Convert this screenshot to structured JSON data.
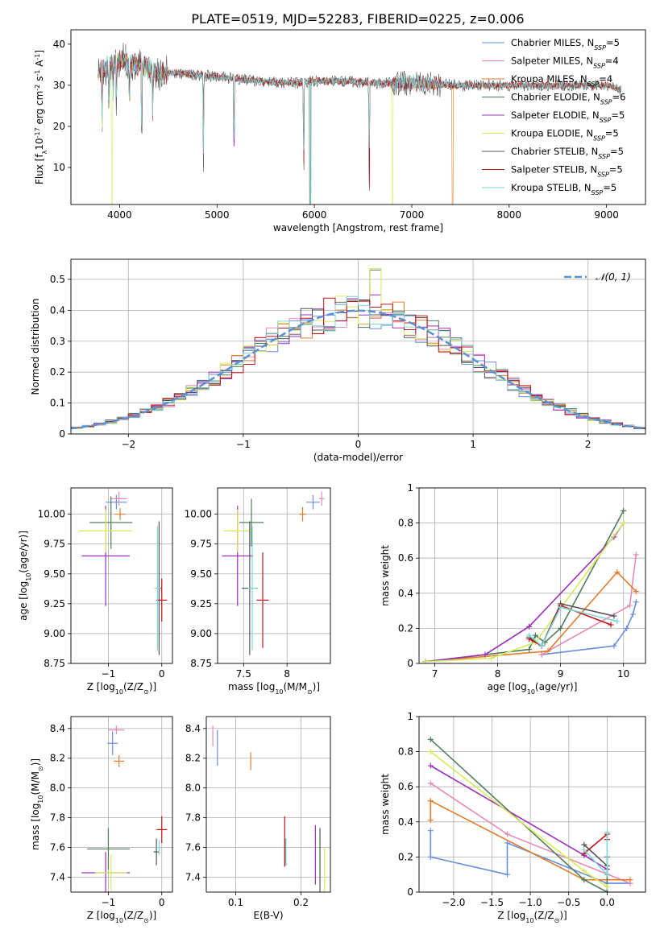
{
  "figure": {
    "title": "PLATE=0519, MJD=52283, FIBERID=0225, z=0.006"
  },
  "colors": {
    "chabrier_miles": "#6a8ee0",
    "salpeter_miles": "#e58ab8",
    "kroupa_miles": "#e07d2c",
    "chabrier_elodie": "#4f7f5a",
    "salpeter_elodie": "#9b30b8",
    "kroupa_elodie": "#d6ea5a",
    "chabrier_stelib": "#555555",
    "salpeter_stelib": "#c0141a",
    "kroupa_stelib": "#7fd6d8",
    "gaussian": "#5b8fd6"
  },
  "chart_data": [
    {
      "id": "spectrum",
      "type": "line",
      "xlabel": "wavelength [Angstrom, rest frame]",
      "ylabel": "Flux [f$_\\lambda$10$^{-17}$ erg cm$^{-2}$ s$^{-1}$ A$^{-1}$]",
      "xlim": [
        3500,
        9400
      ],
      "ylim": [
        1,
        43.5
      ],
      "xticks": [
        4000,
        5000,
        6000,
        7000,
        8000,
        9000
      ],
      "yticks": [
        10,
        20,
        30,
        40
      ],
      "grid": false,
      "legend_position": "top-right",
      "legend": [
        {
          "label": "Chabrier MILES, N",
          "sub": "SSP",
          "value": "=5",
          "color_key": "chabrier_miles"
        },
        {
          "label": "Salpeter MILES, N",
          "sub": "SSP",
          "value": "=4",
          "color_key": "salpeter_miles"
        },
        {
          "label": "Kroupa MILES, N",
          "sub": "SSP",
          "value": "=4",
          "color_key": "kroupa_miles"
        },
        {
          "label": "Chabrier ELODIE, N",
          "sub": "SSP",
          "value": "=6",
          "color_key": "chabrier_elodie"
        },
        {
          "label": "Salpeter ELODIE, N",
          "sub": "SSP",
          "value": "=5",
          "color_key": "salpeter_elodie"
        },
        {
          "label": "Kroupa ELODIE, N",
          "sub": "SSP",
          "value": "=5",
          "color_key": "kroupa_elodie"
        },
        {
          "label": "Chabrier STELIB, N",
          "sub": "SSP",
          "value": "=5",
          "color_key": "chabrier_stelib"
        },
        {
          "label": "Salpeter STELIB, N",
          "sub": "SSP",
          "value": "=5",
          "color_key": "salpeter_stelib"
        },
        {
          "label": "Kroupa STELIB, N",
          "sub": "SSP",
          "value": "=5",
          "color_key": "kroupa_stelib"
        }
      ],
      "continuum": [
        [
          3780,
          33
        ],
        [
          3850,
          34
        ],
        [
          3950,
          36
        ],
        [
          4050,
          36
        ],
        [
          4200,
          35
        ],
        [
          4400,
          33
        ],
        [
          4600,
          33
        ],
        [
          4800,
          32.5
        ],
        [
          5000,
          32
        ],
        [
          5200,
          31.5
        ],
        [
          5500,
          31
        ],
        [
          5800,
          30.5
        ],
        [
          6000,
          31
        ],
        [
          6300,
          31
        ],
        [
          6600,
          30.5
        ],
        [
          7000,
          30.5
        ],
        [
          7500,
          30
        ],
        [
          8000,
          30
        ],
        [
          8500,
          30
        ],
        [
          9000,
          30
        ],
        [
          9150,
          29
        ]
      ],
      "absorption_lines": [
        [
          3820,
          16
        ],
        [
          3890,
          14
        ],
        [
          3934,
          10
        ],
        [
          3968,
          13
        ],
        [
          4101,
          15
        ],
        [
          4227,
          24
        ],
        [
          4340,
          14
        ],
        [
          4861,
          22
        ],
        [
          5175,
          26
        ],
        [
          5890,
          24
        ],
        [
          6563,
          26
        ]
      ],
      "dropouts": [
        [
          3920,
          "kroupa_elodie"
        ],
        [
          5960,
          "kroupa_stelib"
        ],
        [
          5955,
          "chabrier_elodie"
        ],
        [
          6800,
          "kroupa_elodie"
        ],
        [
          7420,
          "kroupa_miles"
        ]
      ]
    },
    {
      "id": "residuals",
      "type": "histogram",
      "xlabel": "(data-model)/error",
      "ylabel": "Normed distribution",
      "xlim": [
        -2.5,
        2.5
      ],
      "ylim": [
        0,
        0.565
      ],
      "xticks": [
        -2,
        -1,
        0,
        1,
        2
      ],
      "yticks": [
        0.0,
        0.1,
        0.2,
        0.3,
        0.4,
        0.5
      ],
      "grid": true,
      "bin_width": 0.1,
      "legend_position": "top-right",
      "gaussian_label": "𝒩(0, 1)",
      "series_keys": [
        "chabrier_miles",
        "salpeter_miles",
        "kroupa_miles",
        "chabrier_elodie",
        "salpeter_elodie",
        "kroupa_elodie",
        "chabrier_stelib",
        "salpeter_stelib",
        "kroupa_stelib"
      ],
      "spikes": {
        "kroupa_elodie": 0.535,
        "chabrier_elodie": 0.53,
        "salpeter_stelib": 0.41,
        "salpeter_elodie": 0.45
      }
    },
    {
      "id": "age_vs_z",
      "type": "errorbar",
      "xlabel": "Z [log$_{10}$(Z/Z$_\\odot$)]",
      "ylabel": "age  [log$_{10}$(age/yr)]",
      "xlim": [
        -1.7,
        0.2
      ],
      "ylim": [
        8.75,
        10.22
      ],
      "xticks": [
        -1,
        0
      ],
      "yticks": [
        8.75,
        9.0,
        9.25,
        9.5,
        9.75,
        10.0
      ],
      "ytick_labels": [
        "8.75",
        "9.00",
        "9.25",
        "9.50",
        "9.75",
        "10.00"
      ],
      "points": [
        {
          "key": "chabrier_miles",
          "x": -0.85,
          "xerr": 0.2,
          "y": 10.1,
          "yerr": 0.06
        },
        {
          "key": "salpeter_miles",
          "x": -0.8,
          "xerr": 0.15,
          "y": 10.13,
          "yerr": 0.06
        },
        {
          "key": "kroupa_miles",
          "x": -0.78,
          "xerr": 0.1,
          "y": 10.0,
          "yerr": 0.05
        },
        {
          "key": "chabrier_elodie",
          "x": -0.95,
          "xerr": 0.4,
          "y": 9.93,
          "yerr": 0.22
        },
        {
          "key": "salpeter_elodie",
          "x": -1.05,
          "xerr": 0.45,
          "y": 9.65,
          "yerr": 0.42
        },
        {
          "key": "kroupa_elodie",
          "x": -1.05,
          "xerr": 0.5,
          "y": 9.86,
          "yerr": 0.18
        },
        {
          "key": "chabrier_stelib",
          "x": -0.05,
          "xerr": 0.05,
          "y": 9.38,
          "yerr": 0.56
        },
        {
          "key": "salpeter_stelib",
          "x": 0.0,
          "xerr": 0.1,
          "y": 9.28,
          "yerr": 0.18
        },
        {
          "key": "kroupa_stelib",
          "x": -0.08,
          "xerr": 0.06,
          "y": 9.38,
          "yerr": 0.52
        }
      ]
    },
    {
      "id": "age_vs_mass",
      "type": "errorbar",
      "xlabel": "mass [log$_{10}$(M/M$_\\odot$)]",
      "ylabel": "",
      "xlim": [
        7.2,
        8.5
      ],
      "ylim": [
        8.75,
        10.22
      ],
      "xticks": [
        7.5,
        8.0
      ],
      "yticks": [
        8.75,
        9.0,
        9.25,
        9.5,
        9.75,
        10.0
      ],
      "ytick_labels": [
        "8.75",
        "9.00",
        "9.25",
        "9.50",
        "9.75",
        "10.00"
      ],
      "points": [
        {
          "key": "chabrier_miles",
          "x": 8.3,
          "xerr": 0.08,
          "y": 10.1,
          "yerr": 0.06
        },
        {
          "key": "salpeter_miles",
          "x": 8.4,
          "xerr": 0.03,
          "y": 10.13,
          "yerr": 0.06
        },
        {
          "key": "kroupa_miles",
          "x": 8.18,
          "xerr": 0.04,
          "y": 10.0,
          "yerr": 0.06
        },
        {
          "key": "chabrier_elodie",
          "x": 7.59,
          "xerr": 0.14,
          "y": 9.93,
          "yerr": 0.2
        },
        {
          "key": "salpeter_elodie",
          "x": 7.43,
          "xerr": 0.18,
          "y": 9.65,
          "yerr": 0.42
        },
        {
          "key": "kroupa_elodie",
          "x": 7.43,
          "xerr": 0.16,
          "y": 9.86,
          "yerr": 0.18
        },
        {
          "key": "chabrier_stelib",
          "x": 7.57,
          "xerr": 0.09,
          "y": 9.38,
          "yerr": 0.56
        },
        {
          "key": "salpeter_stelib",
          "x": 7.72,
          "xerr": 0.07,
          "y": 9.28,
          "yerr": 0.4
        },
        {
          "key": "kroupa_stelib",
          "x": 7.6,
          "xerr": 0.05,
          "y": 9.38,
          "yerr": 0.52
        }
      ]
    },
    {
      "id": "weight_vs_age",
      "type": "line",
      "xlabel": "age  [log$_{10}$(age/yr)]",
      "ylabel": "mass weight",
      "xlim": [
        6.75,
        10.35
      ],
      "ylim": [
        0,
        1.0
      ],
      "xticks": [
        7,
        8,
        9,
        10
      ],
      "yticks": [
        0.0,
        0.2,
        0.4,
        0.6,
        0.8,
        1.0
      ],
      "series": [
        {
          "key": "chabrier_miles",
          "x": [
            8.7,
            9.85,
            10.05,
            10.15,
            10.2
          ],
          "y": [
            0.05,
            0.1,
            0.2,
            0.28,
            0.35
          ]
        },
        {
          "key": "salpeter_miles",
          "x": [
            8.7,
            10.1,
            10.2
          ],
          "y": [
            0.05,
            0.33,
            0.62
          ]
        },
        {
          "key": "kroupa_miles",
          "x": [
            6.85,
            8.8,
            9.9,
            10.2
          ],
          "y": [
            0.01,
            0.07,
            0.52,
            0.41
          ]
        },
        {
          "key": "chabrier_elodie",
          "x": [
            6.85,
            8.5,
            8.6,
            8.75,
            9.0,
            10.0
          ],
          "y": [
            0.01,
            0.08,
            0.16,
            0.12,
            0.2,
            0.87
          ]
        },
        {
          "key": "salpeter_elodie",
          "x": [
            6.85,
            7.8,
            8.5,
            9.85,
            10.0
          ],
          "y": [
            0.01,
            0.05,
            0.21,
            0.72,
            0.8
          ]
        },
        {
          "key": "kroupa_elodie",
          "x": [
            6.85,
            7.9,
            8.6,
            10.0
          ],
          "y": [
            0.01,
            0.03,
            0.12,
            0.8
          ]
        },
        {
          "key": "chabrier_stelib",
          "x": [
            8.5,
            8.7,
            9.0,
            9.85
          ],
          "y": [
            0.15,
            0.1,
            0.34,
            0.27
          ]
        },
        {
          "key": "salpeter_stelib",
          "x": [
            8.5,
            8.7,
            9.0,
            9.8
          ],
          "y": [
            0.14,
            0.1,
            0.33,
            0.22
          ]
        },
        {
          "key": "kroupa_stelib",
          "x": [
            8.5,
            8.7,
            9.0,
            9.9
          ],
          "y": [
            0.16,
            0.1,
            0.32,
            0.24
          ]
        }
      ]
    },
    {
      "id": "mass_vs_z",
      "type": "errorbar",
      "xlabel": "Z [log$_{10}$(Z/Z$_\\odot$)]",
      "ylabel": "mass [log$_{10}$(M/M$_\\odot$)]",
      "xlim": [
        -1.7,
        0.2
      ],
      "ylim": [
        7.3,
        8.48
      ],
      "xticks": [
        -1,
        0
      ],
      "yticks": [
        7.4,
        7.6,
        7.8,
        8.0,
        8.2,
        8.4
      ],
      "ytick_labels": [
        "7.4",
        "7.6",
        "7.8",
        "8.0",
        "8.2",
        "8.4"
      ],
      "points": [
        {
          "key": "chabrier_miles",
          "x": -0.92,
          "xerr": 0.1,
          "y": 8.3,
          "yerr": 0.08
        },
        {
          "key": "salpeter_miles",
          "x": -0.85,
          "xerr": 0.15,
          "y": 8.39,
          "yerr": 0.03
        },
        {
          "key": "kroupa_miles",
          "x": -0.8,
          "xerr": 0.1,
          "y": 8.18,
          "yerr": 0.04
        },
        {
          "key": "chabrier_elodie",
          "x": -1.0,
          "xerr": 0.4,
          "y": 7.59,
          "yerr": 0.14
        },
        {
          "key": "salpeter_elodie",
          "x": -1.05,
          "xerr": 0.45,
          "y": 7.43,
          "yerr": 0.14
        },
        {
          "key": "kroupa_elodie",
          "x": -0.95,
          "xerr": 0.3,
          "y": 7.43,
          "yerr": 0.12
        },
        {
          "key": "chabrier_stelib",
          "x": -0.1,
          "xerr": 0.05,
          "y": 7.57,
          "yerr": 0.09
        },
        {
          "key": "salpeter_stelib",
          "x": 0.0,
          "xerr": 0.1,
          "y": 7.72,
          "yerr": 0.09
        },
        {
          "key": "kroupa_stelib",
          "x": -0.05,
          "xerr": 0.05,
          "y": 7.6,
          "yerr": 0.05
        }
      ]
    },
    {
      "id": "mass_vs_ebv",
      "type": "errorbar",
      "xlabel": "E(B-V)",
      "ylabel": "",
      "xlim": [
        0.055,
        0.245
      ],
      "ylim": [
        7.3,
        8.48
      ],
      "xticks": [
        0.1,
        0.2
      ],
      "yticks": [
        7.4,
        7.6,
        7.8,
        8.0,
        8.2,
        8.4
      ],
      "ytick_labels": [
        "7.4",
        "7.6",
        "7.8",
        "8.0",
        "8.2",
        "8.4"
      ],
      "points": [
        {
          "key": "chabrier_miles",
          "x": 0.072,
          "xerr": 0,
          "y": 8.27,
          "yerr": 0.12
        },
        {
          "key": "salpeter_miles",
          "x": 0.065,
          "xerr": 0,
          "y": 8.35,
          "yerr": 0.07
        },
        {
          "key": "kroupa_miles",
          "x": 0.123,
          "xerr": 0,
          "y": 8.18,
          "yerr": 0.06
        },
        {
          "key": "chabrier_elodie",
          "x": 0.176,
          "xerr": 0,
          "y": 7.57,
          "yerr": 0.09
        },
        {
          "key": "salpeter_elodie",
          "x": 0.222,
          "xerr": 0,
          "y": 7.55,
          "yerr": 0.2
        },
        {
          "key": "kroupa_elodie",
          "x": 0.236,
          "xerr": 0,
          "y": 7.45,
          "yerr": 0.15
        },
        {
          "key": "chabrier_stelib",
          "x": 0.229,
          "xerr": 0,
          "y": 7.5,
          "yerr": 0.23
        },
        {
          "key": "salpeter_stelib",
          "x": 0.175,
          "xerr": 0,
          "y": 7.64,
          "yerr": 0.17
        },
        {
          "key": "kroupa_stelib",
          "x": 0.177,
          "xerr": 0,
          "y": 7.57,
          "yerr": 0.09
        }
      ]
    },
    {
      "id": "weight_vs_z",
      "type": "line",
      "xlabel": "Z [log$_{10}$(Z/Z$_\\odot$)]",
      "ylabel": "mass weight",
      "xlim": [
        -2.45,
        0.5
      ],
      "ylim": [
        0,
        1.0
      ],
      "xticks": [
        -2.0,
        -1.5,
        -1.0,
        -0.5,
        0.0
      ],
      "xtick_labels": [
        "−2.0",
        "−1.5",
        "−1.0",
        "−0.5",
        "0.0"
      ],
      "yticks": [
        0.0,
        0.2,
        0.4,
        0.6,
        0.8,
        1.0
      ],
      "series": [
        {
          "key": "chabrier_miles",
          "x": [
            -2.3,
            -2.3,
            -1.3,
            -1.3,
            0.0,
            0.3
          ],
          "y": [
            0.35,
            0.2,
            0.1,
            0.28,
            0.05,
            0.05
          ]
        },
        {
          "key": "salpeter_miles",
          "x": [
            -2.3,
            -1.3,
            0.3
          ],
          "y": [
            0.62,
            0.33,
            0.05
          ]
        },
        {
          "key": "kroupa_miles",
          "x": [
            -2.3,
            -2.3,
            -0.3,
            0.3
          ],
          "y": [
            0.41,
            0.52,
            0.07,
            0.07
          ]
        },
        {
          "key": "chabrier_elodie",
          "x": [
            -2.3,
            -0.3,
            0.0,
            0.0
          ],
          "y": [
            0.87,
            0.07,
            0.0,
            0.2
          ]
        },
        {
          "key": "salpeter_elodie",
          "x": [
            -2.3,
            -0.3,
            0.0
          ],
          "y": [
            0.72,
            0.21,
            0.13
          ]
        },
        {
          "key": "kroupa_elodie",
          "x": [
            -2.3,
            -0.3,
            0.0
          ],
          "y": [
            0.8,
            0.12,
            0.03
          ]
        },
        {
          "key": "chabrier_stelib",
          "x": [
            -0.3,
            0.0,
            0.0
          ],
          "y": [
            0.27,
            0.15,
            0.1
          ]
        },
        {
          "key": "salpeter_stelib",
          "x": [
            -0.3,
            0.0,
            0.0
          ],
          "y": [
            0.22,
            0.33,
            0.3
          ]
        },
        {
          "key": "kroupa_stelib",
          "x": [
            -0.3,
            0.0,
            0.0
          ],
          "y": [
            0.24,
            0.1,
            0.34
          ]
        }
      ]
    }
  ]
}
